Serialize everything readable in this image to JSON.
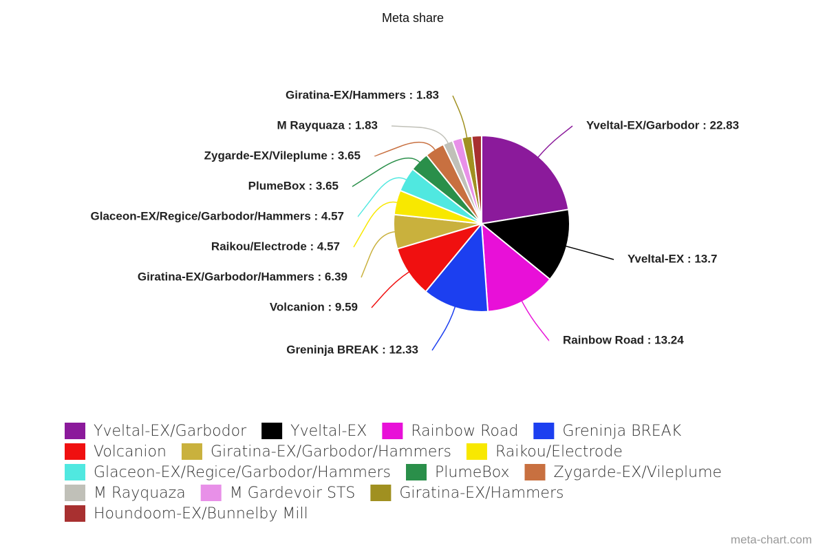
{
  "chart_data": {
    "type": "pie",
    "title": "Meta share",
    "watermark": "meta-chart.com",
    "categories": [
      "Yveltal-EX/Garbodor",
      "Yveltal-EX",
      "Rainbow Road",
      "Greninja BREAK",
      "Volcanion",
      "Giratina-EX/Garbodor/Hammers",
      "Raikou/Electrode",
      "Glaceon-EX/Regice/Garbodor/Hammers",
      "PlumeBox",
      "Zygarde-EX/Vileplume",
      "M Rayquaza",
      "M Gardevoir STS",
      "Giratina-EX/Hammers",
      "Houndoom-EX/Bunnelby Mill"
    ],
    "values": [
      22.83,
      13.7,
      13.24,
      12.33,
      9.59,
      6.39,
      4.57,
      4.57,
      3.65,
      3.65,
      1.83,
      1.83,
      1.83,
      1.83
    ],
    "value_labels": [
      "Yveltal-EX/Garbodor : 22.83",
      "Yveltal-EX : 13.7",
      "Rainbow Road : 13.24",
      "Greninja BREAK : 12.33",
      "Volcanion : 9.59",
      "Giratina-EX/Garbodor/Hammers : 6.39",
      "Raikou/Electrode : 4.57",
      "Glaceon-EX/Regice/Garbodor/Hammers : 4.57",
      "PlumeBox : 3.65",
      "Zygarde-EX/Vileplume : 3.65",
      "M Rayquaza : 1.83",
      null,
      "Giratina-EX/Hammers : 1.83",
      null
    ],
    "colors": [
      "#8b1a9b",
      "#000000",
      "#e810d8",
      "#1c3ff0",
      "#f01010",
      "#c9b13d",
      "#f8e800",
      "#50e8e0",
      "#2a8f4a",
      "#c87040",
      "#c0c0b8",
      "#e890e8",
      "#a09020",
      "#a83030"
    ],
    "legend": "bottom"
  }
}
